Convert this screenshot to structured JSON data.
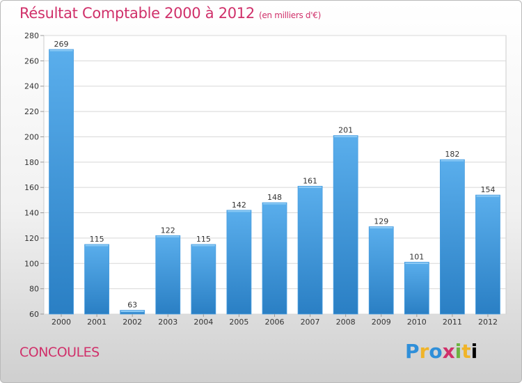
{
  "header": {
    "title": "Résultat Comptable 2000 à 2012",
    "subtitle": "(en milliers d'€)"
  },
  "footer": {
    "town": "CONCOULES",
    "logo_letters": [
      "P",
      "r",
      "o",
      "x",
      "i",
      "t",
      "i"
    ]
  },
  "colors": {
    "accent": "#d0306a",
    "bar_top": "#5aaeec",
    "bar_bottom": "#2a7fc4"
  },
  "chart_data": {
    "type": "bar",
    "title": "Résultat Comptable 2000 à 2012",
    "ylabel": "",
    "xlabel": "",
    "categories": [
      "2000",
      "2001",
      "2002",
      "2003",
      "2004",
      "2005",
      "2006",
      "2007",
      "2008",
      "2009",
      "2010",
      "2011",
      "2012"
    ],
    "values": [
      269,
      115,
      63,
      122,
      115,
      142,
      148,
      161,
      201,
      129,
      101,
      182,
      154
    ],
    "ylim": [
      60,
      280
    ],
    "yticks": [
      60,
      80,
      100,
      120,
      140,
      160,
      180,
      200,
      220,
      240,
      260,
      280
    ],
    "grid": true
  }
}
